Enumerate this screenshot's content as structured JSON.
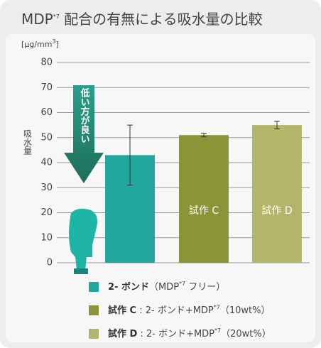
{
  "chart_data": {
    "type": "bar",
    "title": [
      "MDP",
      "*7",
      " 配合の有無による吸水量の比較"
    ],
    "unit_label": [
      "[",
      "μg/mm",
      "3",
      "]"
    ],
    "y_label": "吸水量",
    "annotation": "低い方が良い",
    "categories": [
      null,
      "試作 C",
      "試作 D"
    ],
    "values": [
      43,
      51,
      55
    ],
    "errors": [
      12,
      0.7,
      1.5
    ],
    "colors": [
      "#21a79e",
      "#8b9538",
      "#b3b56a"
    ],
    "ylim": [
      0,
      80
    ],
    "yticks": [
      0,
      10,
      20,
      30,
      40,
      50,
      60,
      70,
      80
    ],
    "grid": true,
    "legend": [
      {
        "label": "2- ボンド",
        "note": [
          "（MDP",
          "*7",
          " フリー）"
        ]
      },
      {
        "label": "試作 C",
        "note": [
          " : 2- ボンド+MDP",
          "*7",
          "（10wt%）"
        ]
      },
      {
        "label": "試作 D",
        "note": [
          " : 2- ボンド+MDP",
          "*7",
          "（20wt%）"
        ]
      }
    ]
  }
}
